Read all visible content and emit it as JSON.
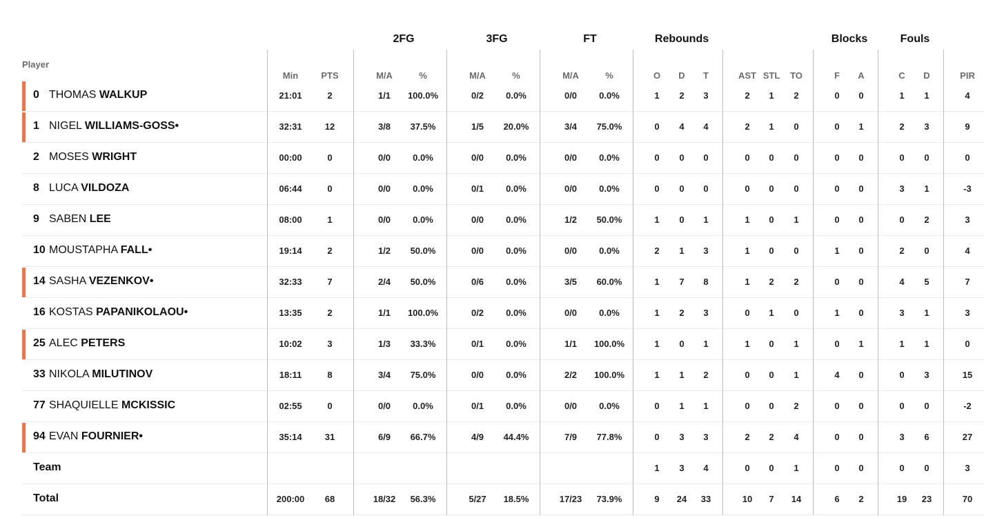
{
  "header": {
    "groups": {
      "fg2": "2FG",
      "fg3": "3FG",
      "ft": "FT",
      "rebounds": "Rebounds",
      "blocks": "Blocks",
      "fouls": "Fouls"
    },
    "player": "Player",
    "min": "Min",
    "pts": "PTS",
    "ma": "M/A",
    "pct": "%",
    "off": "O",
    "def": "D",
    "tot": "T",
    "ast": "AST",
    "stl": "STL",
    "to": "TO",
    "blk_f": "F",
    "blk_a": "A",
    "foul_c": "C",
    "foul_d": "D",
    "pir": "PIR"
  },
  "colors": {
    "starter_accent": "#e8774d"
  },
  "players": [
    {
      "num": "0",
      "first": "THOMAS",
      "last": "WALKUP",
      "mark": "",
      "starter": true,
      "min": "21:01",
      "pts": "2",
      "fg2": "1/1",
      "fg2p": "100.0%",
      "fg3": "0/2",
      "fg3p": "0.0%",
      "ft": "0/0",
      "ftp": "0.0%",
      "o": "1",
      "d": "2",
      "t": "3",
      "ast": "2",
      "stl": "1",
      "to": "2",
      "bf": "0",
      "ba": "0",
      "fc": "1",
      "fd": "1",
      "pir": "4"
    },
    {
      "num": "1",
      "first": "NIGEL",
      "last": "WILLIAMS-GOSS",
      "mark": "•",
      "starter": true,
      "min": "32:31",
      "pts": "12",
      "fg2": "3/8",
      "fg2p": "37.5%",
      "fg3": "1/5",
      "fg3p": "20.0%",
      "ft": "3/4",
      "ftp": "75.0%",
      "o": "0",
      "d": "4",
      "t": "4",
      "ast": "2",
      "stl": "1",
      "to": "0",
      "bf": "0",
      "ba": "1",
      "fc": "2",
      "fd": "3",
      "pir": "9"
    },
    {
      "num": "2",
      "first": "MOSES",
      "last": "WRIGHT",
      "mark": "",
      "starter": false,
      "min": "00:00",
      "pts": "0",
      "fg2": "0/0",
      "fg2p": "0.0%",
      "fg3": "0/0",
      "fg3p": "0.0%",
      "ft": "0/0",
      "ftp": "0.0%",
      "o": "0",
      "d": "0",
      "t": "0",
      "ast": "0",
      "stl": "0",
      "to": "0",
      "bf": "0",
      "ba": "0",
      "fc": "0",
      "fd": "0",
      "pir": "0"
    },
    {
      "num": "8",
      "first": "LUCA",
      "last": "VILDOZA",
      "mark": "",
      "starter": false,
      "min": "06:44",
      "pts": "0",
      "fg2": "0/0",
      "fg2p": "0.0%",
      "fg3": "0/1",
      "fg3p": "0.0%",
      "ft": "0/0",
      "ftp": "0.0%",
      "o": "0",
      "d": "0",
      "t": "0",
      "ast": "0",
      "stl": "0",
      "to": "0",
      "bf": "0",
      "ba": "0",
      "fc": "3",
      "fd": "1",
      "pir": "-3"
    },
    {
      "num": "9",
      "first": "SABEN",
      "last": "LEE",
      "mark": "",
      "starter": false,
      "min": "08:00",
      "pts": "1",
      "fg2": "0/0",
      "fg2p": "0.0%",
      "fg3": "0/0",
      "fg3p": "0.0%",
      "ft": "1/2",
      "ftp": "50.0%",
      "o": "1",
      "d": "0",
      "t": "1",
      "ast": "1",
      "stl": "0",
      "to": "1",
      "bf": "0",
      "ba": "0",
      "fc": "0",
      "fd": "2",
      "pir": "3"
    },
    {
      "num": "10",
      "first": "MOUSTAPHA",
      "last": "FALL",
      "mark": "•",
      "starter": false,
      "min": "19:14",
      "pts": "2",
      "fg2": "1/2",
      "fg2p": "50.0%",
      "fg3": "0/0",
      "fg3p": "0.0%",
      "ft": "0/0",
      "ftp": "0.0%",
      "o": "2",
      "d": "1",
      "t": "3",
      "ast": "1",
      "stl": "0",
      "to": "0",
      "bf": "1",
      "ba": "0",
      "fc": "2",
      "fd": "0",
      "pir": "4"
    },
    {
      "num": "14",
      "first": "SASHA",
      "last": "VEZENKOV",
      "mark": "•",
      "starter": true,
      "min": "32:33",
      "pts": "7",
      "fg2": "2/4",
      "fg2p": "50.0%",
      "fg3": "0/6",
      "fg3p": "0.0%",
      "ft": "3/5",
      "ftp": "60.0%",
      "o": "1",
      "d": "7",
      "t": "8",
      "ast": "1",
      "stl": "2",
      "to": "2",
      "bf": "0",
      "ba": "0",
      "fc": "4",
      "fd": "5",
      "pir": "7"
    },
    {
      "num": "16",
      "first": "KOSTAS",
      "last": "PAPANIKOLAOU",
      "mark": "•",
      "starter": false,
      "min": "13:35",
      "pts": "2",
      "fg2": "1/1",
      "fg2p": "100.0%",
      "fg3": "0/2",
      "fg3p": "0.0%",
      "ft": "0/0",
      "ftp": "0.0%",
      "o": "1",
      "d": "2",
      "t": "3",
      "ast": "0",
      "stl": "1",
      "to": "0",
      "bf": "1",
      "ba": "0",
      "fc": "3",
      "fd": "1",
      "pir": "3"
    },
    {
      "num": "25",
      "first": "ALEC",
      "last": "PETERS",
      "mark": "",
      "starter": true,
      "min": "10:02",
      "pts": "3",
      "fg2": "1/3",
      "fg2p": "33.3%",
      "fg3": "0/1",
      "fg3p": "0.0%",
      "ft": "1/1",
      "ftp": "100.0%",
      "o": "1",
      "d": "0",
      "t": "1",
      "ast": "1",
      "stl": "0",
      "to": "1",
      "bf": "0",
      "ba": "1",
      "fc": "1",
      "fd": "1",
      "pir": "0"
    },
    {
      "num": "33",
      "first": "NIKOLA",
      "last": "MILUTINOV",
      "mark": "",
      "starter": false,
      "min": "18:11",
      "pts": "8",
      "fg2": "3/4",
      "fg2p": "75.0%",
      "fg3": "0/0",
      "fg3p": "0.0%",
      "ft": "2/2",
      "ftp": "100.0%",
      "o": "1",
      "d": "1",
      "t": "2",
      "ast": "0",
      "stl": "0",
      "to": "1",
      "bf": "4",
      "ba": "0",
      "fc": "0",
      "fd": "3",
      "pir": "15"
    },
    {
      "num": "77",
      "first": "SHAQUIELLE",
      "last": "MCKISSIC",
      "mark": "",
      "starter": false,
      "min": "02:55",
      "pts": "0",
      "fg2": "0/0",
      "fg2p": "0.0%",
      "fg3": "0/1",
      "fg3p": "0.0%",
      "ft": "0/0",
      "ftp": "0.0%",
      "o": "0",
      "d": "1",
      "t": "1",
      "ast": "0",
      "stl": "0",
      "to": "2",
      "bf": "0",
      "ba": "0",
      "fc": "0",
      "fd": "0",
      "pir": "-2"
    },
    {
      "num": "94",
      "first": "EVAN",
      "last": "FOURNIER",
      "mark": "•",
      "starter": true,
      "min": "35:14",
      "pts": "31",
      "fg2": "6/9",
      "fg2p": "66.7%",
      "fg3": "4/9",
      "fg3p": "44.4%",
      "ft": "7/9",
      "ftp": "77.8%",
      "o": "0",
      "d": "3",
      "t": "3",
      "ast": "2",
      "stl": "2",
      "to": "4",
      "bf": "0",
      "ba": "0",
      "fc": "3",
      "fd": "6",
      "pir": "27"
    }
  ],
  "team": {
    "label": "Team",
    "min": "",
    "pts": "",
    "fg2": "",
    "fg2p": "",
    "fg3": "",
    "fg3p": "",
    "ft": "",
    "ftp": "",
    "o": "1",
    "d": "3",
    "t": "4",
    "ast": "0",
    "stl": "0",
    "to": "1",
    "bf": "0",
    "ba": "0",
    "fc": "0",
    "fd": "0",
    "pir": "3"
  },
  "total": {
    "label": "Total",
    "min": "200:00",
    "pts": "68",
    "fg2": "18/32",
    "fg2p": "56.3%",
    "fg3": "5/27",
    "fg3p": "18.5%",
    "ft": "17/23",
    "ftp": "73.9%",
    "o": "9",
    "d": "24",
    "t": "33",
    "ast": "10",
    "stl": "7",
    "to": "14",
    "bf": "6",
    "ba": "2",
    "fc": "19",
    "fd": "23",
    "pir": "70"
  }
}
